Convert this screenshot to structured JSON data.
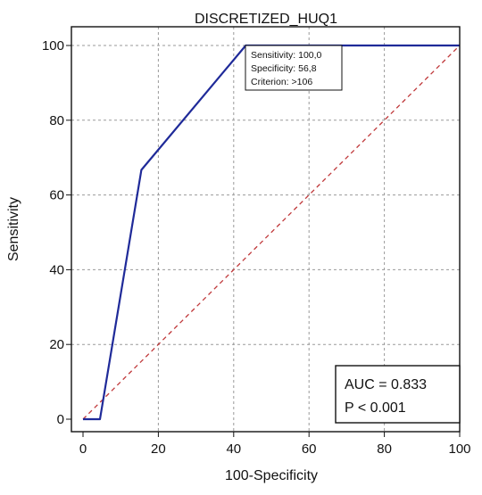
{
  "chart_data": {
    "type": "line",
    "title": "DISCRETIZED_HUQ1",
    "xlabel": "100-Specificity",
    "ylabel": "Sensitivity",
    "xlim": [
      0,
      100
    ],
    "ylim": [
      0,
      100
    ],
    "x_ticks": [
      0,
      20,
      40,
      60,
      80,
      100
    ],
    "y_ticks": [
      0,
      20,
      40,
      60,
      80,
      100
    ],
    "x_tick_labels": [
      "0",
      "20",
      "40",
      "60",
      "80",
      "100"
    ],
    "y_tick_labels": [
      "0",
      "20",
      "40",
      "60",
      "80",
      "100"
    ],
    "grid": true,
    "series": [
      {
        "role": "roc",
        "color": "#1f2a99",
        "x": [
          0,
          4.5,
          15.5,
          43.2,
          100
        ],
        "y": [
          0,
          0,
          66.7,
          100,
          100
        ]
      },
      {
        "role": "reference",
        "color": "#c0393b",
        "style": "dashed",
        "x": [
          0,
          100
        ],
        "y": [
          0,
          100
        ]
      }
    ],
    "point_annotation": {
      "x": 43.2,
      "y": 100,
      "lines": [
        "Sensitivity: 100,0",
        "Specificity: 56,8",
        "Criterion: >106"
      ]
    },
    "stats_box": {
      "position": "bottom-right",
      "lines": [
        "AUC = 0.833",
        "P < 0.001"
      ]
    }
  }
}
